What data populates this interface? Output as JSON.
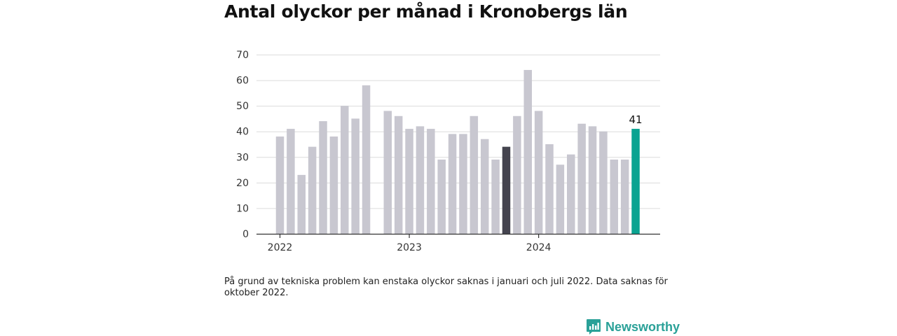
{
  "colors": {
    "bar_default": "#c8c7d0",
    "bar_highlight_dark": "#45444f",
    "bar_highlight_latest": "#0aa391",
    "grid": "#dcdcdc",
    "axis": "#333333",
    "brand": "#2aa198"
  },
  "chart_data": {
    "type": "bar",
    "title": "Antal olyckor per månad i Kronobergs län",
    "xlabel": "",
    "ylabel": "",
    "ylim": [
      0,
      70
    ],
    "yticks": [
      "0",
      "10",
      "20",
      "30",
      "40",
      "50",
      "60",
      "70"
    ],
    "grid": true,
    "x_tick_labels": [
      {
        "label": "2022",
        "month_index": 0
      },
      {
        "label": "2023",
        "month_index": 12
      },
      {
        "label": "2024",
        "month_index": 24
      }
    ],
    "categories": [
      "2022-01",
      "2022-02",
      "2022-03",
      "2022-04",
      "2022-05",
      "2022-06",
      "2022-07",
      "2022-08",
      "2022-09",
      "2022-10",
      "2022-11",
      "2022-12",
      "2023-01",
      "2023-02",
      "2023-03",
      "2023-04",
      "2023-05",
      "2023-06",
      "2023-07",
      "2023-08",
      "2023-09",
      "2023-10",
      "2023-11",
      "2023-12",
      "2024-01",
      "2024-02",
      "2024-03",
      "2024-04",
      "2024-05",
      "2024-06",
      "2024-07",
      "2024-08",
      "2024-09",
      "2024-10"
    ],
    "values": [
      38,
      41,
      23,
      34,
      44,
      38,
      50,
      45,
      58,
      null,
      48,
      46,
      41,
      42,
      41,
      29,
      39,
      39,
      46,
      37,
      29,
      34,
      46,
      64,
      48,
      35,
      27,
      31,
      43,
      42,
      40,
      29,
      29,
      41
    ],
    "highlight_dark_index": 21,
    "highlight_latest_index": 33,
    "data_labels": [
      {
        "index": 33,
        "text": "41"
      }
    ]
  },
  "footnote": "På grund av tekniska problem kan enstaka olyckor saknas i januari och juli 2022. Data saknas för oktober 2022.",
  "brand": {
    "name": "Newsworthy",
    "icon": "newsworthy-logo-icon"
  }
}
